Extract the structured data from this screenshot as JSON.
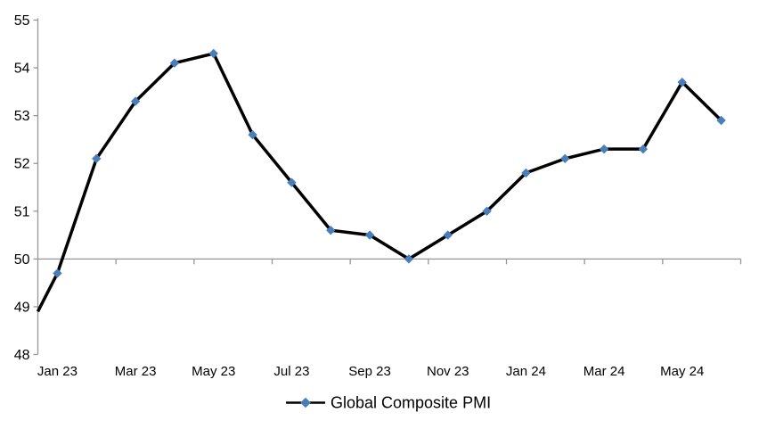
{
  "chart_data": {
    "type": "line",
    "title": "",
    "categories": [
      "Jan 23",
      "Feb 23",
      "Mar 23",
      "Apr 23",
      "May 23",
      "Jun 23",
      "Jul 23",
      "Aug 23",
      "Sep 23",
      "Oct 23",
      "Nov 23",
      "Dec 23",
      "Jan 24",
      "Feb 24",
      "Mar 24",
      "Apr 24",
      "May 24",
      "Jun 24"
    ],
    "series": [
      {
        "name": "Global Composite PMI",
        "values": [
          49.7,
          52.1,
          53.3,
          54.1,
          54.3,
          52.6,
          51.6,
          50.6,
          50.5,
          50.0,
          50.5,
          51.0,
          51.8,
          52.1,
          52.3,
          52.3,
          53.7,
          52.9
        ],
        "line_color": "#000000",
        "marker": "diamond",
        "marker_color": "#4A7EBB"
      }
    ],
    "lead_in_value_at_left_axis": 48.9,
    "ylim": [
      48,
      55
    ],
    "y_tick_step": 1,
    "y_tick_labels": [
      "48",
      "49",
      "50",
      "51",
      "52",
      "53",
      "54",
      "55"
    ],
    "x_label_interval": 2,
    "x_labels_visible": [
      "Jan 23",
      "Mar 23",
      "May 23",
      "Jul 23",
      "Sep 23",
      "Nov 23",
      "Jan 24",
      "Mar 24",
      "May 24"
    ],
    "x_tick_interval_categories": 2,
    "gridline_value": 50,
    "axis_color": "#969696",
    "text_color": "#000000",
    "background_color": "#FFFFFF",
    "legend_position": "bottom-center",
    "grid": "no gridlines except single horizontal axis line at 50"
  }
}
